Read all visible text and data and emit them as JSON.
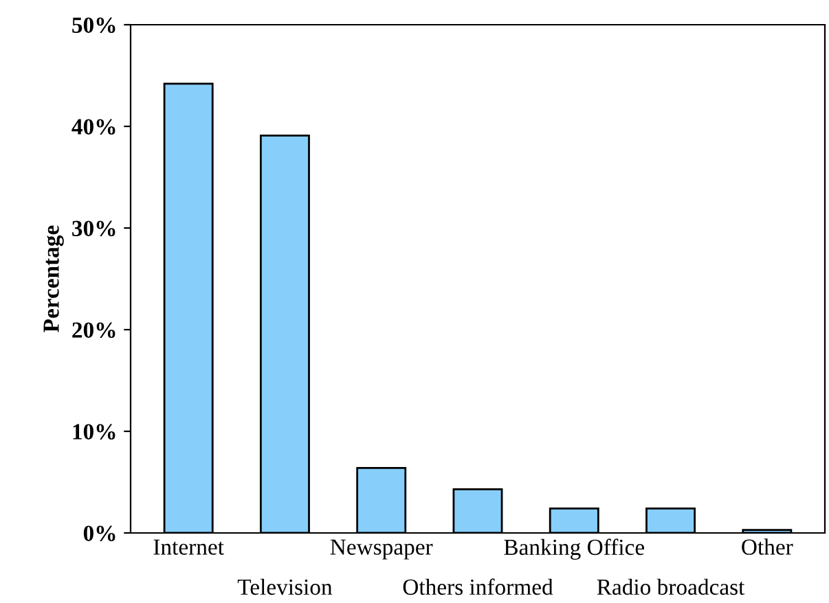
{
  "chart_data": {
    "type": "bar",
    "ylabel": "Percentage",
    "categories": [
      "Internet",
      "Television",
      "Newspaper",
      "Others informed",
      "Banking Office",
      "Radio broadcast",
      "Other"
    ],
    "values": [
      44.2,
      39.1,
      6.4,
      4.3,
      2.4,
      2.4,
      0.3
    ],
    "color": "#87cefa",
    "ylim": [
      0,
      50
    ],
    "yticks": [
      {
        "value": 0,
        "label": "0%"
      },
      {
        "value": 10,
        "label": "10%"
      },
      {
        "value": 20,
        "label": "20%"
      },
      {
        "value": 30,
        "label": "30%"
      },
      {
        "value": 40,
        "label": "40%"
      },
      {
        "value": 50,
        "label": "50%"
      }
    ],
    "grid": false,
    "legend": false
  }
}
